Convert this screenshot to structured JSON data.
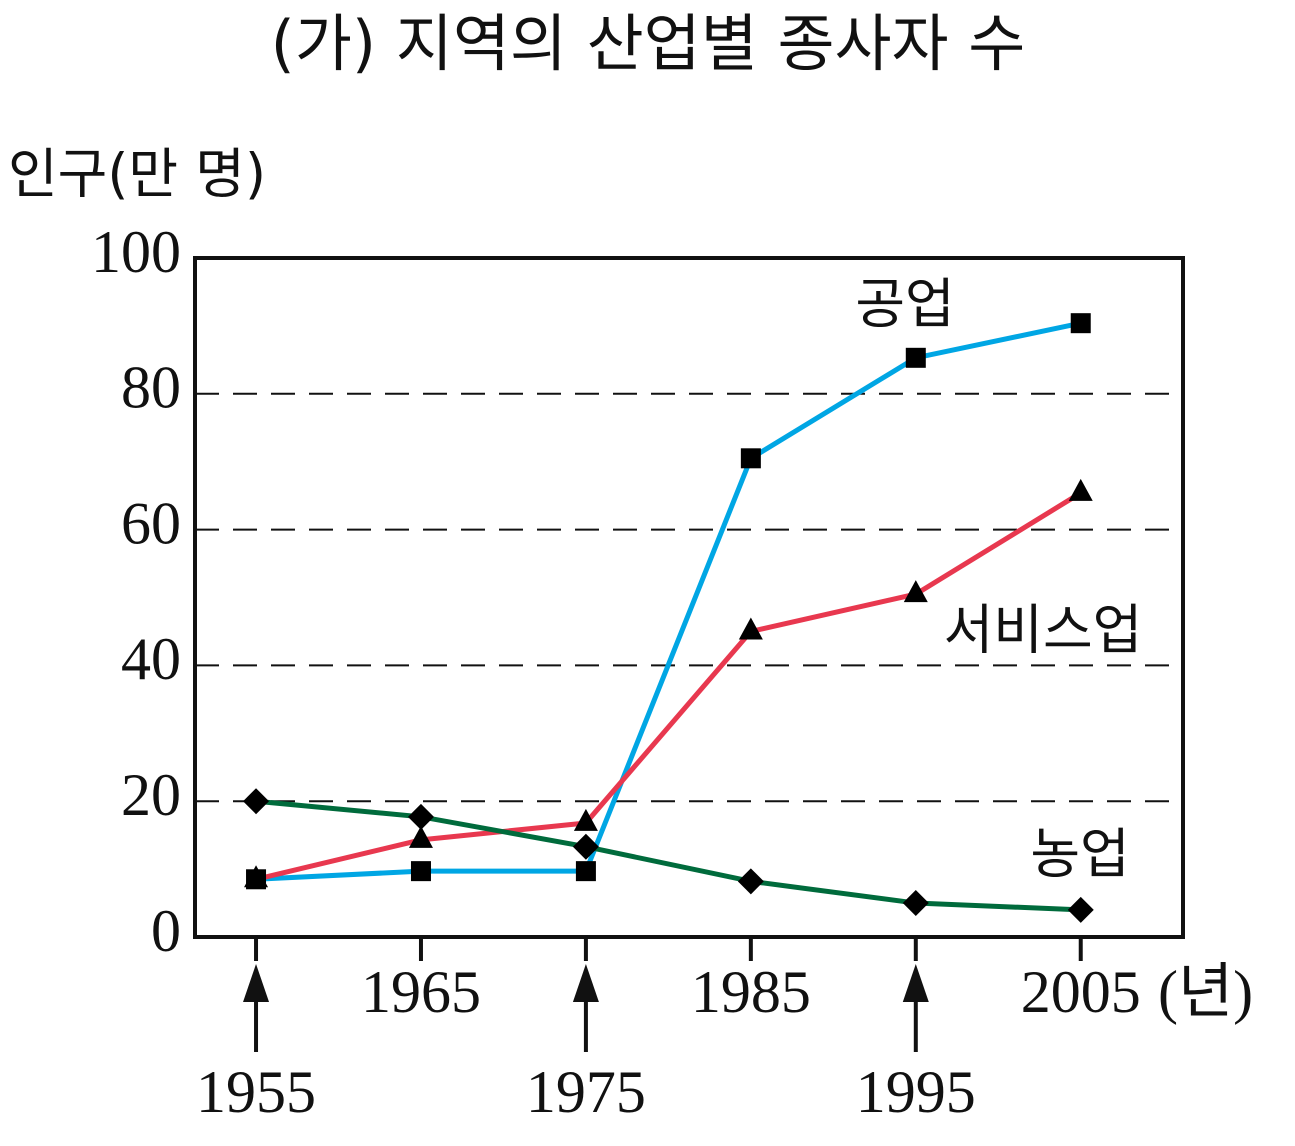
{
  "chart_data": {
    "type": "line",
    "title": "(가) 지역의 산업별 종사자 수",
    "y_label": "인구(만 명)",
    "x_label": "(년)",
    "x": [
      1955,
      1965,
      1975,
      1985,
      1995,
      2005
    ],
    "xlim": [
      1951.3,
      2011.2
    ],
    "xticks": [
      1955,
      1965,
      1975,
      1985,
      1995,
      2005
    ],
    "ylim": [
      0,
      100
    ],
    "yticks": [
      0,
      20,
      40,
      60,
      80,
      100
    ],
    "grid": true,
    "series": [
      {
        "name": "공업",
        "color": "#00a6e4",
        "marker": "square",
        "values": [
          8.5,
          9.7,
          9.7,
          70.5,
          85.3,
          90.4
        ]
      },
      {
        "name": "서비스업",
        "color": "#e8384f",
        "marker": "triangle",
        "values": [
          8.5,
          14.3,
          16.8,
          45,
          50.5,
          65.4
        ]
      },
      {
        "name": "농업",
        "color": "#006b3c",
        "marker": "diamond",
        "values": [
          20,
          17.7,
          13.3,
          8.2,
          5,
          4
        ]
      }
    ]
  }
}
